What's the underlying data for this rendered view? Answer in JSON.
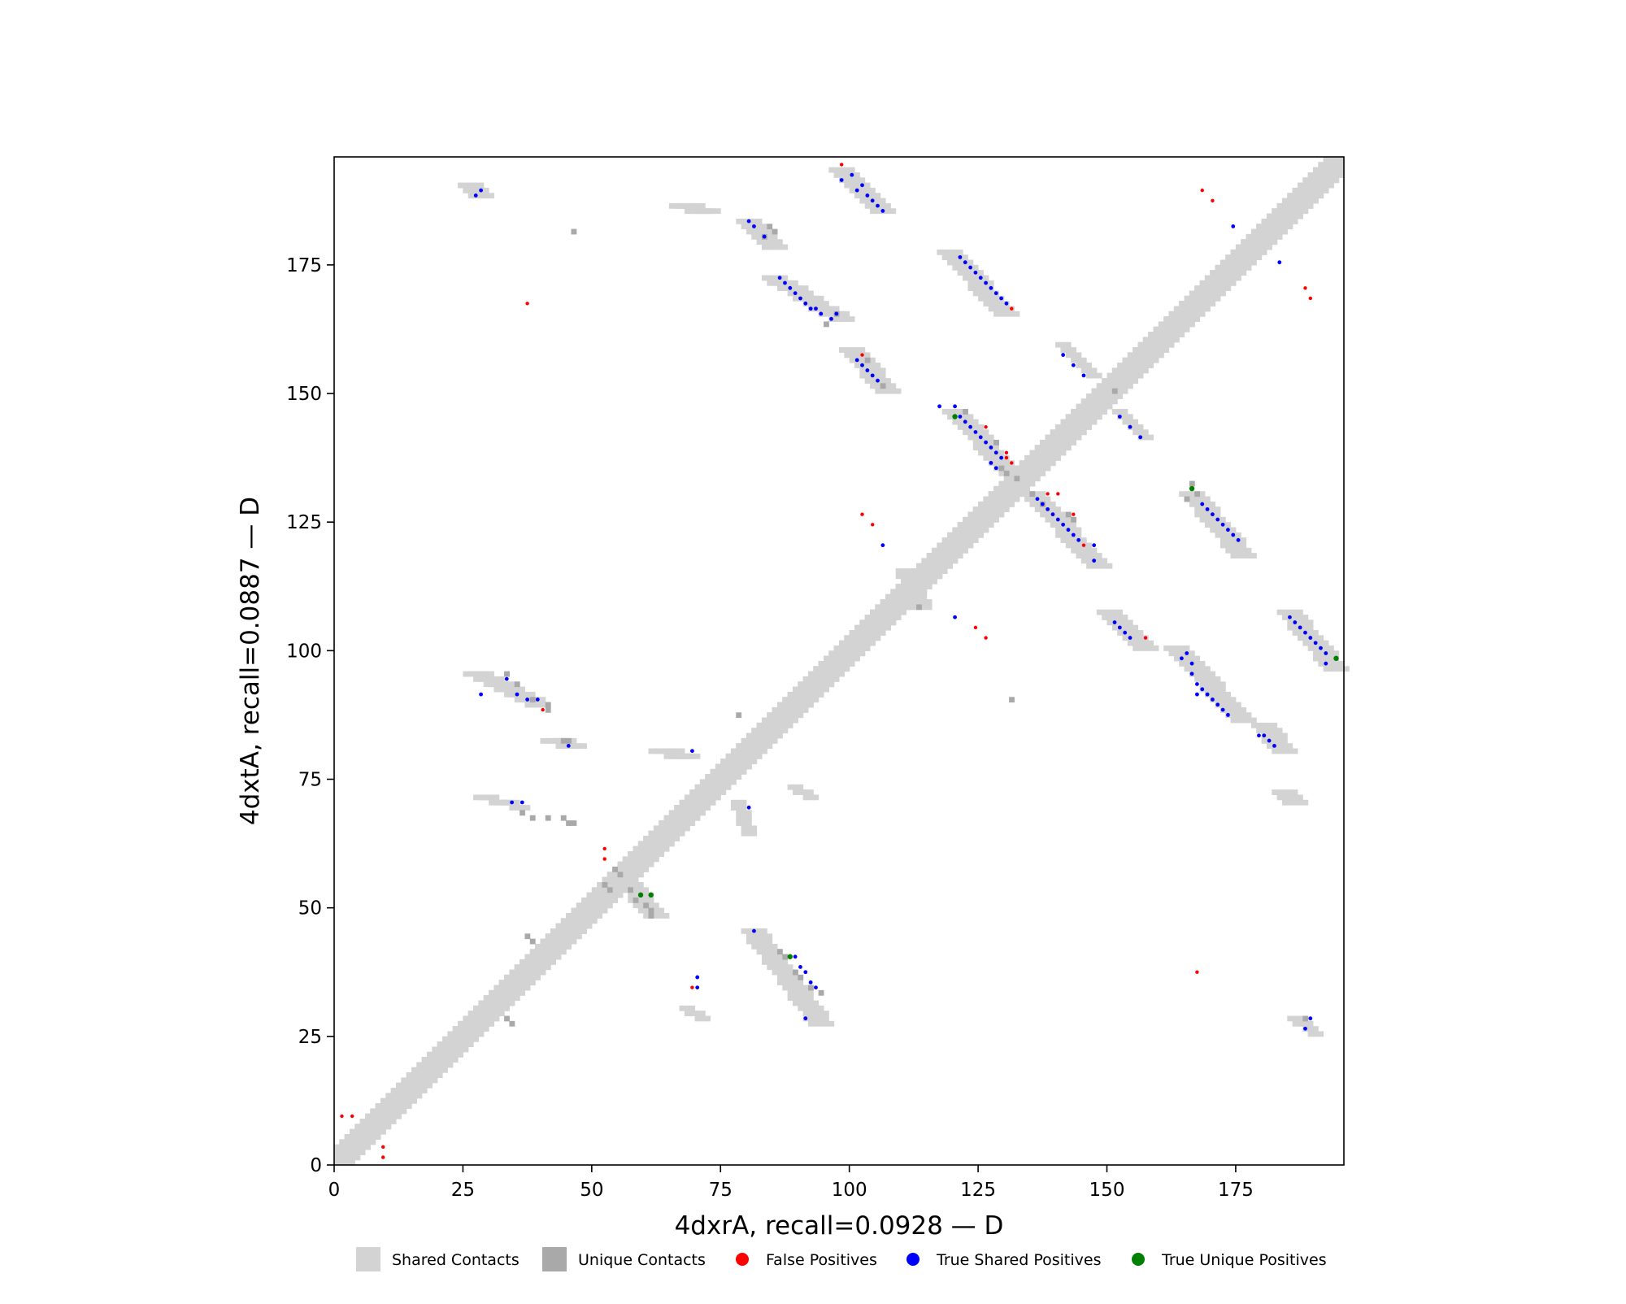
{
  "chart_data": {
    "type": "heatmap",
    "subtype": "protein contact map overlay",
    "title": "",
    "xlabel": "4dxrA, recall=0.0928 — D",
    "ylabel": "4dxtA, recall=0.0887 — D",
    "xlim": [
      0,
      196
    ],
    "ylim": [
      0,
      196
    ],
    "xticks": [
      0,
      25,
      50,
      75,
      100,
      125,
      150,
      175
    ],
    "yticks": [
      0,
      25,
      50,
      75,
      100,
      125,
      150,
      175
    ],
    "grid": false,
    "legend_position": "bottom",
    "colors": {
      "shared_contacts": "#d3d3d3",
      "unique_contacts": "#a9a9a9",
      "false_positives": "#ff0000",
      "true_shared_positives": "#0000ff",
      "true_unique_positives": "#008000"
    },
    "legend": [
      {
        "key": "shared",
        "label": "Shared Contacts",
        "marker": "square",
        "color": "#d3d3d3"
      },
      {
        "key": "unique",
        "label": "Unique Contacts",
        "marker": "square",
        "color": "#a9a9a9"
      },
      {
        "key": "fp",
        "label": "False Positives",
        "marker": "circle",
        "color": "#ff0000"
      },
      {
        "key": "tsp",
        "label": "True Shared Positives",
        "marker": "circle",
        "color": "#0000ff"
      },
      {
        "key": "tup",
        "label": "True Unique Positives",
        "marker": "circle",
        "color": "#008000"
      }
    ],
    "diagonal_band": {
      "from": 0,
      "to": 195,
      "halfwidth": 3
    },
    "shared_contact_segments": [
      {
        "x0": 98,
        "y0": 193,
        "x1": 106,
        "y1": 185,
        "w": 2
      },
      {
        "x0": 80,
        "y0": 183,
        "x1": 85,
        "y1": 178,
        "w": 2
      },
      {
        "x0": 85,
        "y0": 172,
        "x1": 98,
        "y1": 164,
        "w": 2
      },
      {
        "x0": 119,
        "y0": 177,
        "x1": 130,
        "y1": 165,
        "w": 2
      },
      {
        "x0": 100,
        "y0": 158,
        "x1": 107,
        "y1": 150,
        "w": 2
      },
      {
        "x0": 120,
        "y0": 146,
        "x1": 131,
        "y1": 134,
        "w": 2
      },
      {
        "x0": 135,
        "y0": 130,
        "x1": 148,
        "y1": 116,
        "w": 2
      },
      {
        "x0": 166,
        "y0": 130,
        "x1": 176,
        "y1": 118,
        "w": 2
      },
      {
        "x0": 150,
        "y0": 107,
        "x1": 157,
        "y1": 100,
        "w": 2
      },
      {
        "x0": 185,
        "y0": 107,
        "x1": 194,
        "y1": 96,
        "w": 2
      },
      {
        "x0": 163,
        "y0": 100,
        "x1": 176,
        "y1": 86,
        "w": 2
      },
      {
        "x0": 180,
        "y0": 85,
        "x1": 184,
        "y1": 80,
        "w": 2
      },
      {
        "x0": 27,
        "y0": 95,
        "x1": 39,
        "y1": 89,
        "w": 2
      },
      {
        "x0": 81,
        "y0": 45,
        "x1": 94,
        "y1": 27,
        "w": 2
      },
      {
        "x0": 55,
        "y0": 56,
        "x1": 62,
        "y1": 48,
        "w": 2
      },
      {
        "x0": 26,
        "y0": 190,
        "x1": 28,
        "y1": 188,
        "w": 2
      },
      {
        "x0": 67,
        "y0": 186,
        "x1": 72,
        "y1": 185,
        "w": 2
      },
      {
        "x0": 141,
        "y0": 159,
        "x1": 147,
        "y1": 153,
        "w": 1
      },
      {
        "x0": 152,
        "y0": 146,
        "x1": 157,
        "y1": 141,
        "w": 1
      },
      {
        "x0": 42,
        "y0": 82,
        "x1": 46,
        "y1": 81,
        "w": 2
      },
      {
        "x0": 63,
        "y0": 80,
        "x1": 68,
        "y1": 79,
        "w": 2
      },
      {
        "x0": 28,
        "y0": 71,
        "x1": 36,
        "y1": 69,
        "w": 1
      },
      {
        "x0": 68,
        "y0": 30,
        "x1": 71,
        "y1": 28,
        "w": 1
      },
      {
        "x0": 186,
        "y0": 28,
        "x1": 190,
        "y1": 25,
        "w": 1
      },
      {
        "x0": 184,
        "y0": 72,
        "x1": 186,
        "y1": 70,
        "w": 2
      },
      {
        "x0": 111,
        "y0": 115,
        "x1": 113,
        "y1": 108,
        "w": 2
      },
      {
        "x0": 89,
        "y0": 73,
        "x1": 92,
        "y1": 71,
        "w": 1
      },
      {
        "x0": 78,
        "y0": 70,
        "x1": 80,
        "y1": 64,
        "w": 1
      }
    ],
    "unique_contact_cells": [
      [
        84,
        182
      ],
      [
        85,
        181
      ],
      [
        83,
        180
      ],
      [
        97,
        165
      ],
      [
        95,
        163
      ],
      [
        103,
        156
      ],
      [
        122,
        146
      ],
      [
        128,
        140
      ],
      [
        129,
        135
      ],
      [
        130,
        134
      ],
      [
        132,
        133
      ],
      [
        135,
        130
      ],
      [
        137,
        128
      ],
      [
        142,
        126
      ],
      [
        143,
        125
      ],
      [
        166,
        132
      ],
      [
        167,
        130
      ],
      [
        165,
        129
      ],
      [
        33,
        95
      ],
      [
        35,
        93
      ],
      [
        38,
        90
      ],
      [
        41,
        89
      ],
      [
        41,
        88
      ],
      [
        44,
        82
      ],
      [
        45,
        82
      ],
      [
        54,
        57
      ],
      [
        55,
        56
      ],
      [
        52,
        54
      ],
      [
        53,
        53
      ],
      [
        57,
        53
      ],
      [
        58,
        51
      ],
      [
        60,
        50
      ],
      [
        61,
        49
      ],
      [
        61,
        48
      ],
      [
        86,
        41
      ],
      [
        87,
        40
      ],
      [
        89,
        37
      ],
      [
        90,
        36
      ],
      [
        92,
        34
      ],
      [
        94,
        33
      ],
      [
        36,
        68
      ],
      [
        38,
        67
      ],
      [
        41,
        67
      ],
      [
        44,
        67
      ],
      [
        45,
        66
      ],
      [
        46,
        66
      ],
      [
        33,
        28
      ],
      [
        34,
        27
      ],
      [
        37,
        44
      ],
      [
        38,
        43
      ],
      [
        106,
        151
      ],
      [
        151,
        150
      ],
      [
        113,
        108
      ],
      [
        131,
        90
      ],
      [
        188,
        28
      ],
      [
        78,
        87
      ],
      [
        46,
        181
      ]
    ],
    "false_positives": [
      [
        98,
        194
      ],
      [
        168,
        189
      ],
      [
        170,
        187
      ],
      [
        37,
        167
      ],
      [
        188,
        170
      ],
      [
        189,
        168
      ],
      [
        131,
        166
      ],
      [
        102,
        157
      ],
      [
        126,
        143
      ],
      [
        130,
        138
      ],
      [
        130,
        137
      ],
      [
        131,
        136
      ],
      [
        138,
        130
      ],
      [
        140,
        130
      ],
      [
        143,
        126
      ],
      [
        145,
        120
      ],
      [
        102,
        126
      ],
      [
        104,
        124
      ],
      [
        124,
        104
      ],
      [
        126,
        102
      ],
      [
        157,
        102
      ],
      [
        40,
        88
      ],
      [
        52,
        61
      ],
      [
        52,
        59
      ],
      [
        69,
        34
      ],
      [
        167,
        37
      ],
      [
        1,
        9
      ],
      [
        3,
        9
      ],
      [
        9,
        3
      ],
      [
        9,
        1
      ]
    ],
    "true_shared_positives": [
      [
        98,
        191
      ],
      [
        100,
        192
      ],
      [
        102,
        190
      ],
      [
        101,
        189
      ],
      [
        103,
        188
      ],
      [
        104,
        187
      ],
      [
        105,
        186
      ],
      [
        106,
        185
      ],
      [
        80,
        183
      ],
      [
        81,
        182
      ],
      [
        83,
        180
      ],
      [
        86,
        172
      ],
      [
        87,
        171
      ],
      [
        88,
        170
      ],
      [
        89,
        169
      ],
      [
        90,
        168
      ],
      [
        91,
        167
      ],
      [
        92,
        166
      ],
      [
        93,
        166
      ],
      [
        94,
        165
      ],
      [
        96,
        164
      ],
      [
        97,
        165
      ],
      [
        121,
        176
      ],
      [
        122,
        175
      ],
      [
        123,
        174
      ],
      [
        124,
        173
      ],
      [
        125,
        172
      ],
      [
        126,
        171
      ],
      [
        127,
        170
      ],
      [
        128,
        169
      ],
      [
        129,
        168
      ],
      [
        130,
        167
      ],
      [
        174,
        182
      ],
      [
        183,
        175
      ],
      [
        101,
        156
      ],
      [
        102,
        155
      ],
      [
        103,
        154
      ],
      [
        104,
        153
      ],
      [
        105,
        152
      ],
      [
        141,
        157
      ],
      [
        143,
        155
      ],
      [
        145,
        153
      ],
      [
        117,
        147
      ],
      [
        120,
        147
      ],
      [
        121,
        145
      ],
      [
        122,
        144
      ],
      [
        123,
        143
      ],
      [
        124,
        142
      ],
      [
        125,
        141
      ],
      [
        126,
        140
      ],
      [
        127,
        139
      ],
      [
        128,
        138
      ],
      [
        129,
        137
      ],
      [
        127,
        136
      ],
      [
        128,
        135
      ],
      [
        152,
        145
      ],
      [
        154,
        143
      ],
      [
        156,
        141
      ],
      [
        136,
        129
      ],
      [
        137,
        128
      ],
      [
        138,
        127
      ],
      [
        139,
        126
      ],
      [
        140,
        125
      ],
      [
        141,
        124
      ],
      [
        142,
        123
      ],
      [
        143,
        122
      ],
      [
        144,
        121
      ],
      [
        147,
        120
      ],
      [
        147,
        117
      ],
      [
        168,
        128
      ],
      [
        169,
        127
      ],
      [
        170,
        126
      ],
      [
        171,
        125
      ],
      [
        172,
        124
      ],
      [
        173,
        123
      ],
      [
        174,
        122
      ],
      [
        175,
        121
      ],
      [
        106,
        120
      ],
      [
        120,
        106
      ],
      [
        151,
        105
      ],
      [
        152,
        104
      ],
      [
        153,
        103
      ],
      [
        154,
        102
      ],
      [
        185,
        106
      ],
      [
        186,
        105
      ],
      [
        187,
        104
      ],
      [
        188,
        103
      ],
      [
        189,
        102
      ],
      [
        190,
        101
      ],
      [
        191,
        100
      ],
      [
        192,
        99
      ],
      [
        192,
        97
      ],
      [
        164,
        98
      ],
      [
        165,
        99
      ],
      [
        166,
        97
      ],
      [
        166,
        95
      ],
      [
        167,
        93
      ],
      [
        167,
        91
      ],
      [
        168,
        92
      ],
      [
        169,
        91
      ],
      [
        170,
        90
      ],
      [
        171,
        89
      ],
      [
        172,
        88
      ],
      [
        173,
        87
      ],
      [
        179,
        83
      ],
      [
        180,
        83
      ],
      [
        181,
        82
      ],
      [
        182,
        81
      ],
      [
        33,
        94
      ],
      [
        28,
        91
      ],
      [
        35,
        91
      ],
      [
        37,
        90
      ],
      [
        39,
        90
      ],
      [
        45,
        81
      ],
      [
        69,
        80
      ],
      [
        34,
        70
      ],
      [
        36,
        70
      ],
      [
        80,
        69
      ],
      [
        81,
        45
      ],
      [
        89,
        40
      ],
      [
        90,
        38
      ],
      [
        91,
        37
      ],
      [
        92,
        35
      ],
      [
        93,
        34
      ],
      [
        91,
        28
      ],
      [
        70,
        36
      ],
      [
        70,
        34
      ],
      [
        188,
        26
      ],
      [
        189,
        28
      ],
      [
        27,
        188
      ],
      [
        28,
        189
      ]
    ],
    "true_unique_positives": [
      [
        120,
        145
      ],
      [
        166,
        131
      ],
      [
        194,
        98
      ],
      [
        59,
        52
      ],
      [
        61,
        52
      ],
      [
        88,
        40
      ]
    ]
  }
}
